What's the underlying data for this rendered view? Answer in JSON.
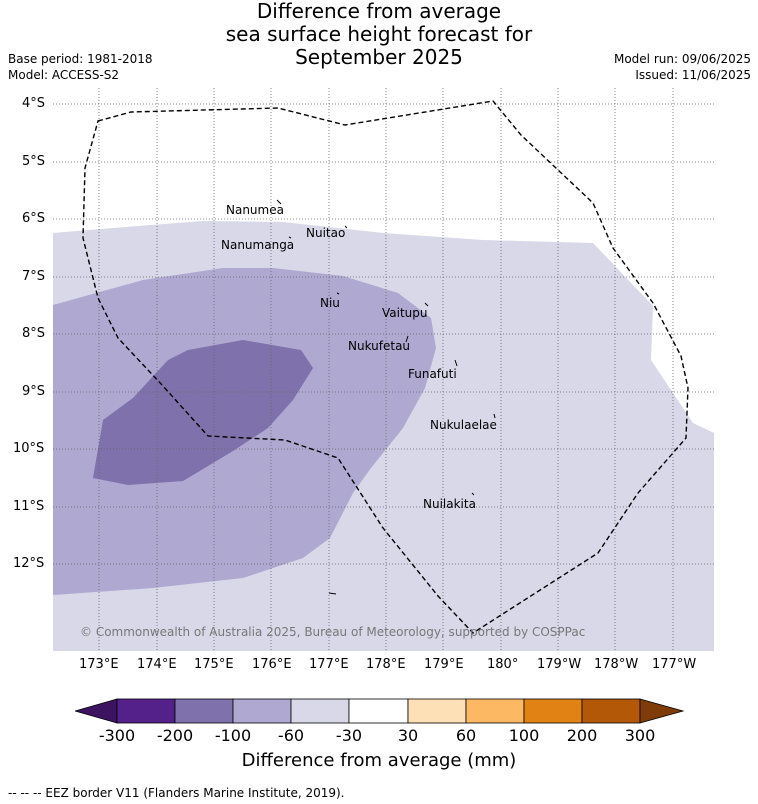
{
  "title": {
    "line1": "Difference from average",
    "line2": "sea surface height forecast for",
    "line3": "September 2025"
  },
  "meta": {
    "base_period": "Base period: 1981-2018",
    "model": "Model: ACCESS-S2",
    "model_run": "Model run: 09/06/2025",
    "issued": "Issued: 11/06/2025"
  },
  "axes": {
    "lat_labels": [
      "4°S",
      "5°S",
      "6°S",
      "7°S",
      "8°S",
      "9°S",
      "10°S",
      "11°S",
      "12°S"
    ],
    "lon_labels": [
      "173°E",
      "174°E",
      "175°E",
      "176°E",
      "177°E",
      "178°E",
      "179°E",
      "180°",
      "179°W",
      "178°W",
      "177°W"
    ]
  },
  "islands": [
    {
      "name": "Nanumea"
    },
    {
      "name": "Nuitao"
    },
    {
      "name": "Nanumanga"
    },
    {
      "name": "Niu"
    },
    {
      "name": "Vaitupu"
    },
    {
      "name": "Nukufetau"
    },
    {
      "name": "Funafuti"
    },
    {
      "name": "Nukulaelae"
    },
    {
      "name": "Nuilakita"
    }
  ],
  "credit": "© Commonwealth of Australia 2025, Bureau of Meteorology, supported by COSPPac",
  "colorbar": {
    "ticks": [
      "-300",
      "-200",
      "-100",
      "-60",
      "-30",
      "30",
      "60",
      "100",
      "200",
      "300"
    ],
    "title": "Difference from average (mm)",
    "colors": [
      "#3c1360",
      "#54208a",
      "#7f71ac",
      "#afa8d1",
      "#d8d8e8",
      "#ffffff",
      "#fee0b6",
      "#fdb863",
      "#e08214",
      "#b35806",
      "#7f3b08"
    ]
  },
  "legend_note": "-- -- -- EEZ border V11 (Flanders Marine Institute, 2019).",
  "map_colors": {
    "bin_light": "#d8d8e8",
    "bin_mid": "#afa8d1",
    "bin_dark": "#7f71ac",
    "background": "#ffffff"
  }
}
